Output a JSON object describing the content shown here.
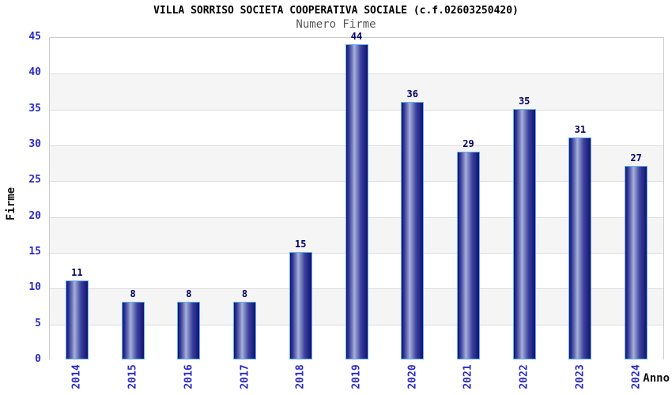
{
  "chart_data": {
    "type": "bar",
    "title": "VILLA SORRISO SOCIETA COOPERATIVA SOCIALE (c.f.02603250420)",
    "subtitle": "Numero Firme",
    "xlabel": "Anno",
    "ylabel": "Firme",
    "categories": [
      "2014",
      "2015",
      "2016",
      "2017",
      "2018",
      "2019",
      "2020",
      "2021",
      "2022",
      "2023",
      "2024"
    ],
    "values": [
      11,
      8,
      8,
      8,
      15,
      44,
      36,
      29,
      35,
      31,
      27
    ],
    "ylim": [
      0,
      45
    ],
    "yticks": [
      0,
      5,
      10,
      15,
      20,
      25,
      30,
      35,
      40,
      45
    ],
    "grid": "horizontal-bands-alternating",
    "legend": "none",
    "colors": {
      "axis_tick_label": "#2929cc",
      "value_label": "#000066",
      "bar_edge_dark": "#12126e",
      "bar_mid": "#3a41a0",
      "bar_highlight": "#a8b0da",
      "bar_border": "#62b1ee",
      "band_gray": "#f5f5f5",
      "band_white": "#ffffff",
      "gridline": "#dddddd",
      "plot_border": "#cccccc",
      "title_color": "#000000",
      "subtitle_color": "#555555"
    }
  }
}
